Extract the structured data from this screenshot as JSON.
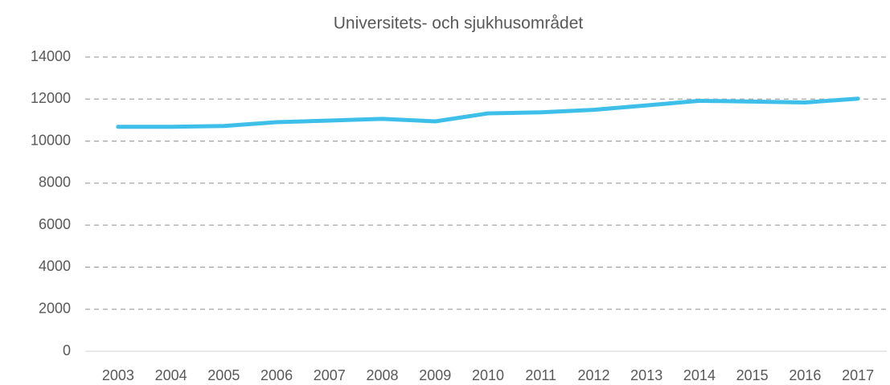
{
  "chart_data": {
    "type": "line",
    "title": "Universitets- och sjukhusområdet",
    "categories": [
      "2003",
      "2004",
      "2005",
      "2006",
      "2007",
      "2008",
      "2009",
      "2010",
      "2011",
      "2012",
      "2013",
      "2014",
      "2015",
      "2016",
      "2017"
    ],
    "series": [
      {
        "name": "Universitets- och sjukhusområdet",
        "color": "#3dbfea",
        "values": [
          10680,
          10680,
          10720,
          10900,
          10980,
          11060,
          10940,
          11320,
          11370,
          11490,
          11700,
          11920,
          11880,
          11840,
          12020
        ]
      }
    ],
    "ylim": [
      0,
      14000
    ],
    "yticks": [
      0,
      2000,
      4000,
      6000,
      8000,
      10000,
      12000,
      14000
    ],
    "grid": true
  }
}
